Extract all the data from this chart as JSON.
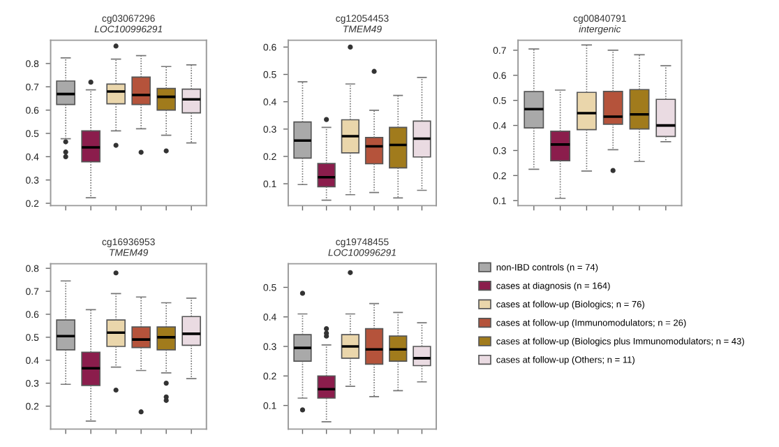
{
  "chart_data": [
    {
      "type": "box",
      "title": "cg03067296",
      "subtitle": "LOC100996291",
      "categories": [
        null,
        null,
        null,
        null,
        null,
        null
      ],
      "ylim": [
        0.19,
        0.9
      ],
      "yticks": [
        0.2,
        0.3,
        0.4,
        0.5,
        0.6,
        0.7,
        0.8
      ],
      "legend": "right",
      "tick_labels": "y",
      "series": [
        {
          "name": "non-IBD controls (n = 74)",
          "color": "#a9a9a9",
          "boxes": [
            {
              "low": 0.477,
              "q1": 0.624,
              "median": 0.669,
              "q3": 0.725,
              "high": 0.824,
              "outliers": [
                0.464,
                0.42,
                0.4
              ]
            },
            null,
            null,
            null,
            null,
            null
          ]
        },
        {
          "name": "cases at diagnosis (n = 164)",
          "color": "#8b1d4c",
          "boxes": [
            null,
            {
              "low": 0.224,
              "q1": 0.378,
              "median": 0.44,
              "q3": 0.511,
              "high": 0.687,
              "outliers": [
                0.72
              ]
            },
            null,
            null,
            null,
            null
          ]
        },
        {
          "name": "cases at follow-up (Biologics; n = 76)",
          "color": "#ead6ab",
          "boxes": [
            null,
            null,
            {
              "low": 0.511,
              "q1": 0.627,
              "median": 0.68,
              "q3": 0.712,
              "high": 0.819,
              "outliers": [
                0.875,
                0.449
              ]
            },
            null,
            null,
            null
          ]
        },
        {
          "name": "cases at follow-up (Immunomodulators; n = 26)",
          "color": "#b5533b",
          "boxes": [
            null,
            null,
            null,
            {
              "low": 0.52,
              "q1": 0.624,
              "median": 0.665,
              "q3": 0.742,
              "high": 0.834,
              "outliers": [
                0.419
              ]
            },
            null,
            null
          ]
        },
        {
          "name": "cases at follow-up (Biologics plus Immunomodulators; n = 43)",
          "color": "#a17b1c",
          "boxes": [
            null,
            null,
            null,
            null,
            {
              "low": 0.492,
              "q1": 0.6,
              "median": 0.657,
              "q3": 0.693,
              "high": 0.787,
              "outliers": [
                0.425
              ]
            },
            null
          ]
        },
        {
          "name": "cases at follow-up (Others; n = 11)",
          "color": "#eadbe2",
          "boxes": [
            null,
            null,
            null,
            null,
            null,
            {
              "low": 0.459,
              "q1": 0.588,
              "median": 0.646,
              "q3": 0.69,
              "high": 0.794
            }
          ]
        }
      ]
    },
    {
      "type": "box",
      "title": "cg12054453",
      "subtitle": "TMEM49",
      "categories": [
        null,
        null,
        null,
        null,
        null,
        null
      ],
      "ylim": [
        0.02,
        0.625
      ],
      "yticks": [
        0.1,
        0.2,
        0.3,
        0.4,
        0.5,
        0.6
      ],
      "tick_labels": "y",
      "series": [
        {
          "color": "#a9a9a9",
          "boxes": [
            {
              "low": 0.097,
              "q1": 0.194,
              "median": 0.258,
              "q3": 0.326,
              "high": 0.473
            },
            null,
            null,
            null,
            null,
            null
          ]
        },
        {
          "color": "#8b1d4c",
          "boxes": [
            null,
            {
              "low": 0.04,
              "q1": 0.089,
              "median": 0.124,
              "q3": 0.174,
              "high": 0.306,
              "outliers": [
                0.335
              ]
            },
            null,
            null,
            null,
            null
          ]
        },
        {
          "color": "#ead6ab",
          "boxes": [
            null,
            null,
            {
              "low": 0.06,
              "q1": 0.213,
              "median": 0.274,
              "q3": 0.334,
              "high": 0.465,
              "outliers": [
                0.6
              ]
            },
            null,
            null,
            null
          ]
        },
        {
          "color": "#b5533b",
          "boxes": [
            null,
            null,
            null,
            {
              "low": 0.068,
              "q1": 0.173,
              "median": 0.237,
              "q3": 0.269,
              "high": 0.369,
              "outliers": [
                0.511
              ]
            },
            null,
            null
          ]
        },
        {
          "color": "#a17b1c",
          "boxes": [
            null,
            null,
            null,
            null,
            {
              "low": 0.048,
              "q1": 0.158,
              "median": 0.242,
              "q3": 0.306,
              "high": 0.423
            },
            null
          ]
        },
        {
          "color": "#eadbe2",
          "boxes": [
            null,
            null,
            null,
            null,
            null,
            {
              "low": 0.076,
              "q1": 0.198,
              "median": 0.265,
              "q3": 0.329,
              "high": 0.489
            }
          ]
        }
      ]
    },
    {
      "type": "box",
      "title": "cg00840791",
      "subtitle": "intergenic",
      "categories": [
        null,
        null,
        null,
        null,
        null,
        null
      ],
      "ylim": [
        0.08,
        0.74
      ],
      "yticks": [
        0.1,
        0.2,
        0.3,
        0.4,
        0.5,
        0.6,
        0.7
      ],
      "tick_labels": "y",
      "series": [
        {
          "color": "#a9a9a9",
          "boxes": [
            {
              "low": 0.225,
              "q1": 0.39,
              "median": 0.465,
              "q3": 0.535,
              "high": 0.705
            },
            null,
            null,
            null,
            null,
            null
          ]
        },
        {
          "color": "#8b1d4c",
          "boxes": [
            null,
            {
              "low": 0.109,
              "q1": 0.259,
              "median": 0.324,
              "q3": 0.377,
              "high": 0.541
            },
            null,
            null,
            null,
            null
          ]
        },
        {
          "color": "#ead6ab",
          "boxes": [
            null,
            null,
            {
              "low": 0.218,
              "q1": 0.383,
              "median": 0.449,
              "q3": 0.532,
              "high": 0.721
            },
            null,
            null,
            null
          ]
        },
        {
          "color": "#b5533b",
          "boxes": [
            null,
            null,
            null,
            {
              "low": 0.303,
              "q1": 0.405,
              "median": 0.435,
              "q3": 0.536,
              "high": 0.7,
              "outliers": [
                0.22
              ]
            },
            null,
            null
          ]
        },
        {
          "color": "#a17b1c",
          "boxes": [
            null,
            null,
            null,
            null,
            {
              "low": 0.256,
              "q1": 0.386,
              "median": 0.444,
              "q3": 0.543,
              "high": 0.682
            },
            null
          ]
        },
        {
          "color": "#eadbe2",
          "boxes": [
            null,
            null,
            null,
            null,
            null,
            {
              "low": 0.335,
              "q1": 0.356,
              "median": 0.4,
              "q3": 0.504,
              "high": 0.638
            }
          ]
        }
      ]
    },
    {
      "type": "box",
      "title": "cg16936953",
      "subtitle": "TMEM49",
      "categories": [
        null,
        null,
        null,
        null,
        null,
        null
      ],
      "ylim": [
        0.1,
        0.82
      ],
      "yticks": [
        0.2,
        0.3,
        0.4,
        0.5,
        0.6,
        0.7,
        0.8
      ],
      "tick_labels": "y",
      "series": [
        {
          "color": "#a9a9a9",
          "boxes": [
            {
              "low": 0.295,
              "q1": 0.445,
              "median": 0.505,
              "q3": 0.575,
              "high": 0.745
            },
            null,
            null,
            null,
            null,
            null
          ]
        },
        {
          "color": "#8b1d4c",
          "boxes": [
            null,
            {
              "low": 0.135,
              "q1": 0.29,
              "median": 0.365,
              "q3": 0.435,
              "high": 0.62
            },
            null,
            null,
            null,
            null
          ]
        },
        {
          "color": "#ead6ab",
          "boxes": [
            null,
            null,
            {
              "low": 0.37,
              "q1": 0.46,
              "median": 0.52,
              "q3": 0.575,
              "high": 0.69,
              "outliers": [
                0.78,
                0.27
              ]
            },
            null,
            null,
            null
          ]
        },
        {
          "color": "#b5533b",
          "boxes": [
            null,
            null,
            null,
            {
              "low": 0.355,
              "q1": 0.455,
              "median": 0.49,
              "q3": 0.545,
              "high": 0.675,
              "outliers": [
                0.175
              ]
            },
            null,
            null
          ]
        },
        {
          "color": "#a17b1c",
          "boxes": [
            null,
            null,
            null,
            null,
            {
              "low": 0.345,
              "q1": 0.445,
              "median": 0.5,
              "q3": 0.545,
              "high": 0.65,
              "outliers": [
                0.3,
                0.24,
                0.225
              ]
            },
            null
          ]
        },
        {
          "color": "#eadbe2",
          "boxes": [
            null,
            null,
            null,
            null,
            null,
            {
              "low": 0.32,
              "q1": 0.465,
              "median": 0.515,
              "q3": 0.59,
              "high": 0.67
            }
          ]
        }
      ]
    },
    {
      "type": "box",
      "title": "cg19748455",
      "subtitle": "LOC100996291",
      "categories": [
        null,
        null,
        null,
        null,
        null,
        null
      ],
      "ylim": [
        0.02,
        0.58
      ],
      "yticks": [
        0.1,
        0.2,
        0.3,
        0.4,
        0.5
      ],
      "tick_labels": "y",
      "series": [
        {
          "color": "#a9a9a9",
          "boxes": [
            {
              "low": 0.125,
              "q1": 0.25,
              "median": 0.295,
              "q3": 0.34,
              "high": 0.41,
              "outliers": [
                0.48,
                0.085
              ]
            },
            null,
            null,
            null,
            null,
            null
          ]
        },
        {
          "color": "#8b1d4c",
          "boxes": [
            null,
            {
              "low": 0.045,
              "q1": 0.125,
              "median": 0.155,
              "q3": 0.2,
              "high": 0.305,
              "outliers": [
                0.335,
                0.345,
                0.36
              ]
            },
            null,
            null,
            null,
            null
          ]
        },
        {
          "color": "#ead6ab",
          "boxes": [
            null,
            null,
            {
              "low": 0.165,
              "q1": 0.26,
              "median": 0.3,
              "q3": 0.34,
              "high": 0.41,
              "outliers": [
                0.55
              ]
            },
            null,
            null,
            null
          ]
        },
        {
          "color": "#b5533b",
          "boxes": [
            null,
            null,
            null,
            {
              "low": 0.13,
              "q1": 0.24,
              "median": 0.29,
              "q3": 0.36,
              "high": 0.445
            },
            null,
            null
          ]
        },
        {
          "color": "#a17b1c",
          "boxes": [
            null,
            null,
            null,
            null,
            {
              "low": 0.15,
              "q1": 0.25,
              "median": 0.29,
              "q3": 0.335,
              "high": 0.415
            },
            null
          ]
        },
        {
          "color": "#eadbe2",
          "boxes": [
            null,
            null,
            null,
            null,
            null,
            {
              "low": 0.18,
              "q1": 0.235,
              "median": 0.26,
              "q3": 0.3,
              "high": 0.38
            }
          ]
        }
      ]
    }
  ]
}
